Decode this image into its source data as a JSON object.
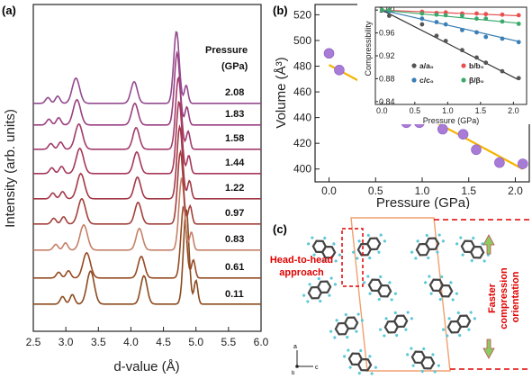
{
  "panels": {
    "a": "(a)",
    "b": "(b)",
    "c": "(c)"
  },
  "chart_data": [
    {
      "type": "line",
      "panel": "a",
      "xlabel": "d-value (Å)",
      "ylabel": "Intensity (arb. units)",
      "xlim": [
        2.5,
        6.0
      ],
      "xticks": [
        "2.5",
        "3.0",
        "3.5",
        "4.0",
        "4.5",
        "5.0",
        "5.5",
        "6.0"
      ],
      "legend_title": [
        "Pressure",
        "(GPa)"
      ],
      "series": [
        {
          "name": "0.11",
          "color": "#8B4A1E"
        },
        {
          "name": "0.61",
          "color": "#954A22"
        },
        {
          "name": "0.83",
          "color": "#C58068"
        },
        {
          "name": "0.97",
          "color": "#A2403A"
        },
        {
          "name": "1.22",
          "color": "#A43848"
        },
        {
          "name": "1.44",
          "color": "#A6385A"
        },
        {
          "name": "1.58",
          "color": "#A23C6C"
        },
        {
          "name": "1.83",
          "color": "#9A3F80"
        },
        {
          "name": "2.08",
          "color": "#924A90"
        }
      ]
    },
    {
      "type": "scatter",
      "panel": "b",
      "xlabel": "Pressure (GPa)",
      "ylabel": "Volume (Å³)",
      "xlim": [
        -0.15,
        2.15
      ],
      "ylim": [
        390,
        528
      ],
      "xticks": [
        "0.0",
        "0.5",
        "1.0",
        "1.5",
        "2.0"
      ],
      "yticks": [
        "400",
        "420",
        "440",
        "460",
        "480",
        "500",
        "520"
      ],
      "x": [
        0.0,
        0.11,
        0.61,
        0.83,
        0.97,
        1.22,
        1.44,
        1.58,
        1.83,
        2.08
      ],
      "y": [
        490,
        477,
        458,
        436,
        436,
        431,
        427,
        415,
        405,
        404
      ],
      "fit": {
        "x": [
          0.0,
          2.08
        ],
        "y": [
          481,
          400
        ],
        "color": "#F5B400"
      },
      "marker_color": "#A77BD6"
    },
    {
      "type": "scatter",
      "panel": "b-inset",
      "xlabel": "Pressure (GPa)",
      "ylabel": "Compressibility",
      "xlim": [
        -0.1,
        2.2
      ],
      "ylim": [
        0.835,
        1.005
      ],
      "xticks": [
        "0.0",
        "0.5",
        "1.0",
        "1.5",
        "2.0"
      ],
      "yticks": [
        "1.00",
        "0.96",
        "0.92",
        "0.88",
        "0.84"
      ],
      "series": [
        {
          "name": "a/a0",
          "label": "a/a₀",
          "color": "#555555",
          "x": [
            0.0,
            0.11,
            0.61,
            0.83,
            0.97,
            1.22,
            1.44,
            1.58,
            1.83,
            2.08
          ],
          "y": [
            1.0,
            0.99,
            0.975,
            0.955,
            0.946,
            0.93,
            0.917,
            0.908,
            0.893,
            0.881
          ],
          "fit": [
            1.0,
            0.878
          ]
        },
        {
          "name": "b/b0",
          "label": "b/b₀",
          "color": "#E85050",
          "x": [
            0.0,
            0.11,
            0.61,
            0.83,
            0.97,
            1.22,
            1.44,
            1.58,
            1.83,
            2.08
          ],
          "y": [
            1.0,
            1.0,
            0.997,
            0.995,
            0.996,
            0.994,
            0.994,
            0.993,
            0.992,
            0.991
          ],
          "fit": [
            1.0,
            0.99
          ]
        },
        {
          "name": "c/c0",
          "label": "c/c₀",
          "color": "#3A7FB5",
          "x": [
            0.0,
            0.11,
            0.61,
            0.83,
            0.97,
            1.22,
            1.44,
            1.58,
            1.83,
            2.08
          ],
          "y": [
            1.0,
            0.998,
            0.985,
            0.979,
            0.975,
            0.965,
            0.961,
            0.953,
            0.95,
            0.944
          ],
          "fit": [
            1.0,
            0.945
          ]
        },
        {
          "name": "beta/beta0",
          "label": "β/β₀",
          "color": "#3CA86A",
          "x": [
            0.0,
            0.11,
            0.61,
            0.83,
            0.97,
            1.22,
            1.44,
            1.58,
            1.83,
            2.08
          ],
          "y": [
            1.0,
            1.0,
            0.994,
            0.992,
            0.991,
            0.99,
            0.985,
            0.985,
            0.98,
            0.976
          ],
          "fit": [
            1.0,
            0.977
          ]
        }
      ],
      "fit_line_color": "#22B5B5"
    }
  ],
  "panel_c": {
    "head_to_head_label": [
      "Head-to-head",
      "approach"
    ],
    "side_label": [
      "Faster",
      "compression",
      "orientation"
    ],
    "axis_a": "a",
    "axis_c": "c",
    "axis_b": "b"
  }
}
